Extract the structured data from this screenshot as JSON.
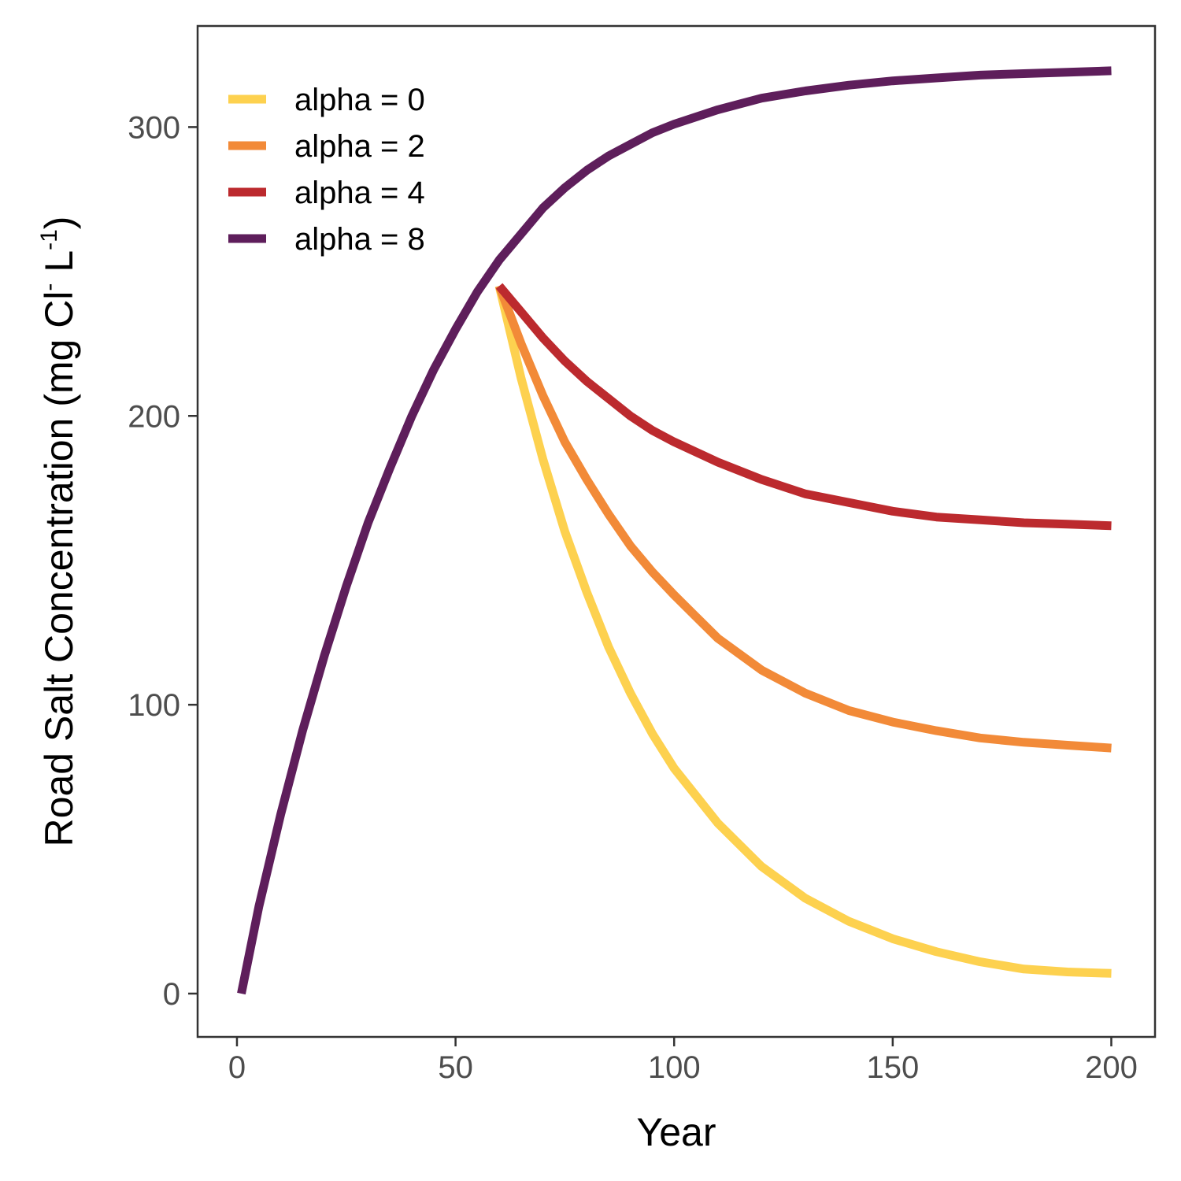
{
  "chart_data": {
    "type": "line",
    "xlabel": "Year",
    "ylabel": {
      "main": "Road Salt Concentration (mg Cl",
      "sup1": "-",
      "mid": " L",
      "sup2": "-1",
      "end": ")"
    },
    "xlim": [
      -9,
      210
    ],
    "ylim": [
      -15,
      335
    ],
    "x_ticks": [
      0,
      50,
      100,
      150,
      200
    ],
    "y_ticks": [
      0,
      100,
      200,
      300
    ],
    "grid": false,
    "legend_position": "top-left",
    "series": [
      {
        "name": "alpha = 0",
        "color": "#FDD14F",
        "x": [
          60,
          65,
          70,
          75,
          80,
          85,
          90,
          95,
          100,
          110,
          120,
          130,
          140,
          150,
          160,
          170,
          180,
          190,
          200
        ],
        "y": [
          245,
          213,
          185,
          160,
          139,
          120,
          104,
          90,
          78,
          59,
          44,
          33,
          25,
          19,
          14.5,
          11,
          8.5,
          7.5,
          7
        ]
      },
      {
        "name": "alpha = 2",
        "color": "#F28A38",
        "x": [
          60,
          65,
          70,
          75,
          80,
          85,
          90,
          95,
          100,
          110,
          120,
          130,
          140,
          150,
          160,
          170,
          180,
          190,
          200
        ],
        "y": [
          245,
          225,
          207,
          191,
          178,
          166,
          155,
          146,
          138,
          123,
          112,
          104,
          98,
          94,
          91,
          88.5,
          87,
          86,
          85
        ]
      },
      {
        "name": "alpha = 4",
        "color": "#BC2A2E",
        "x": [
          60,
          65,
          70,
          75,
          80,
          85,
          90,
          95,
          100,
          110,
          120,
          130,
          140,
          150,
          160,
          170,
          180,
          190,
          200
        ],
        "y": [
          245,
          236,
          227,
          219,
          212,
          206,
          200,
          195,
          191,
          184,
          178,
          173,
          170,
          167,
          165,
          164,
          163,
          162.5,
          162
        ]
      },
      {
        "name": "alpha = 8",
        "color": "#5E1E5B",
        "x": [
          1,
          5,
          10,
          15,
          20,
          25,
          30,
          35,
          40,
          45,
          50,
          55,
          60,
          65,
          70,
          75,
          80,
          85,
          90,
          95,
          100,
          110,
          120,
          130,
          140,
          150,
          160,
          170,
          180,
          190,
          200
        ],
        "y": [
          0,
          30,
          62,
          91,
          117,
          141,
          163,
          182,
          200,
          216,
          230,
          243,
          254,
          263,
          272,
          279,
          285,
          290,
          294,
          298,
          301,
          306,
          310,
          312.5,
          314.5,
          316,
          317,
          318,
          318.5,
          319,
          319.5
        ]
      }
    ]
  }
}
